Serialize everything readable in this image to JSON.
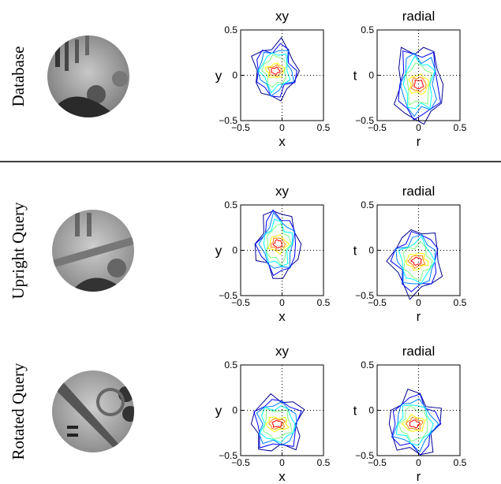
{
  "rows": [
    {
      "label": "Database",
      "plots": [
        {
          "title": "xy",
          "xlabel": "x",
          "ylabel": "y"
        },
        {
          "title": "radial",
          "xlabel": "r",
          "ylabel": "t"
        }
      ]
    },
    {
      "label": "Upright Query",
      "plots": [
        {
          "title": "xy",
          "xlabel": "x",
          "ylabel": "y"
        },
        {
          "title": "radial",
          "xlabel": "r",
          "ylabel": "t"
        }
      ]
    },
    {
      "label": "Rotated Query",
      "plots": [
        {
          "title": "xy",
          "xlabel": "x",
          "ylabel": "y"
        },
        {
          "title": "radial",
          "xlabel": "r",
          "ylabel": "t"
        }
      ]
    }
  ],
  "lim": [
    -0.5,
    0.5
  ],
  "xticks": [
    {
      "value": -0.5,
      "label": "−0.5"
    },
    0,
    0.5
  ],
  "yticks": [
    {
      "value": -0.5,
      "label": "−0.5"
    },
    0,
    0.5
  ]
}
